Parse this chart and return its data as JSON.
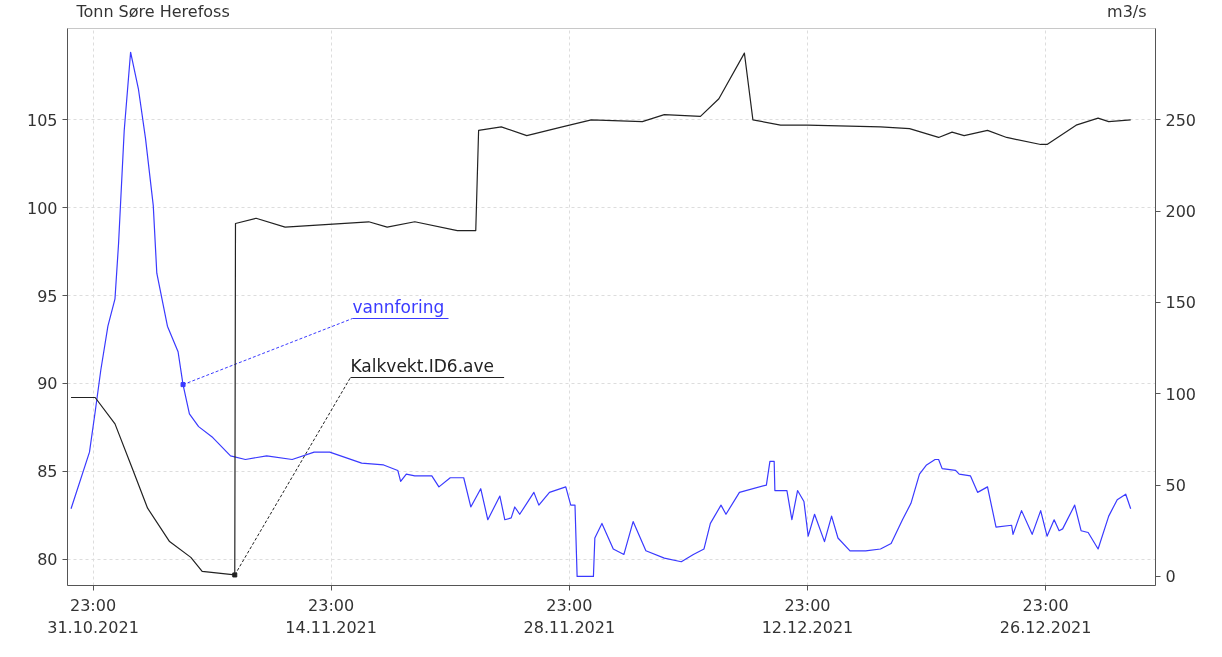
{
  "chart_data": {
    "type": "line",
    "ylabel": "Tonn Søre Herefoss",
    "y2label": "m3/s",
    "xlim": [
      "2021-10-30T11:00",
      "2022-01-02T10:00"
    ],
    "xticks": [
      {
        "value": "2021-10-31T23:00",
        "label": "23:00\n31.10.2021"
      },
      {
        "value": "2021-11-14T23:00",
        "label": "23:00\n14.11.2021"
      },
      {
        "value": "2021-11-28T23:00",
        "label": "23:00\n28.11.2021"
      },
      {
        "value": "2021-12-12T23:00",
        "label": "23:00\n12.12.2021"
      },
      {
        "value": "2021-12-26T23:00",
        "label": "23:00\n26.12.2021"
      }
    ],
    "ylim": [
      78.5,
      110.2
    ],
    "yticks": [
      80,
      85,
      90,
      95,
      100,
      105
    ],
    "y2lim": [
      -5,
      300
    ],
    "y2ticks": [
      0,
      50,
      100,
      150,
      200,
      250
    ],
    "grid": true,
    "legend": false,
    "series": [
      {
        "name": "vannforing",
        "color": "#3a3aff",
        "axis": "y2",
        "x": [
          "2021-10-30T16:00",
          "2021-10-31T18:00",
          "2021-11-01T02:00",
          "2021-11-01T10:00",
          "2021-11-01T20:00",
          "2021-11-02T06:00",
          "2021-11-02T11:00",
          "2021-11-02T19:00",
          "2021-11-03T04:00",
          "2021-11-03T15:00",
          "2021-11-04T01:00",
          "2021-11-04T12:00",
          "2021-11-04T17:00",
          "2021-11-05T08:00",
          "2021-11-05T23:00",
          "2021-11-06T06:00",
          "2021-11-06T15:00",
          "2021-11-07T04:00",
          "2021-11-08T00:00",
          "2021-11-09T01:00",
          "2021-11-09T22:00",
          "2021-11-11T04:00",
          "2021-11-12T16:00",
          "2021-11-13T23:00",
          "2021-11-14T21:00",
          "2021-11-16T18:00",
          "2021-11-18T01:00",
          "2021-11-18T21:00",
          "2021-11-19T01:00",
          "2021-11-19T09:00",
          "2021-11-19T21:00",
          "2021-11-20T21:00",
          "2021-11-21T07:00",
          "2021-11-21T23:00",
          "2021-11-22T18:00",
          "2021-11-23T04:00",
          "2021-11-23T18:00",
          "2021-11-24T04:00",
          "2021-11-24T21:00",
          "2021-11-25T04:00",
          "2021-11-25T13:00",
          "2021-11-25T18:00",
          "2021-11-26T01:00",
          "2021-11-26T21:00",
          "2021-11-27T04:00",
          "2021-11-27T19:00",
          "2021-11-28T18:00",
          "2021-11-29T01:00",
          "2021-11-29T07:00",
          "2021-11-29T10:00",
          "2021-11-30T09:00",
          "2021-11-30T11:00",
          "2021-11-30T21:00",
          "2021-12-01T13:00",
          "2021-12-02T04:00",
          "2021-12-02T17:00",
          "2021-12-03T11:00",
          "2021-12-04T13:00",
          "2021-12-05T13:00",
          "2021-12-06T06:00",
          "2021-12-06T21:00",
          "2021-12-07T06:00",
          "2021-12-07T21:00",
          "2021-12-08T04:00",
          "2021-12-08T23:00",
          "2021-12-10T13:00",
          "2021-12-10T18:00",
          "2021-12-11T00:00",
          "2021-12-11T01:00",
          "2021-12-11T18:00",
          "2021-12-12T01:00",
          "2021-12-12T09:00",
          "2021-12-12T18:00",
          "2021-12-13T00:00",
          "2021-12-13T09:00",
          "2021-12-13T23:00",
          "2021-12-14T09:00",
          "2021-12-14T18:00",
          "2021-12-15T11:00",
          "2021-12-16T09:00",
          "2021-12-17T06:00",
          "2021-12-17T21:00",
          "2021-12-18T13:00",
          "2021-12-19T01:00",
          "2021-12-19T13:00",
          "2021-12-19T23:00",
          "2021-12-20T11:00",
          "2021-12-20T16:00",
          "2021-12-20T21:00",
          "2021-12-21T16:00",
          "2021-12-21T21:00",
          "2021-12-22T13:00",
          "2021-12-22T23:00",
          "2021-12-23T13:00",
          "2021-12-24T01:00",
          "2021-12-24T23:00",
          "2021-12-25T01:00",
          "2021-12-25T13:00",
          "2021-12-26T04:00",
          "2021-12-26T16:00",
          "2021-12-27T01:00",
          "2021-12-27T11:00",
          "2021-12-27T18:00",
          "2021-12-27T23:00",
          "2021-12-28T16:00",
          "2021-12-29T01:00",
          "2021-12-29T11:00",
          "2021-12-30T01:00",
          "2021-12-30T16:00",
          "2021-12-31T04:00",
          "2021-12-31T16:00",
          "2021-12-31T23:00"
        ],
        "values": [
          37,
          68,
          90,
          113,
          137,
          152,
          182,
          244,
          287,
          267,
          240,
          203,
          166,
          137,
          123,
          105,
          89,
          82,
          76,
          66,
          64,
          66,
          64,
          68,
          68,
          62,
          61,
          58,
          52,
          56,
          55,
          55,
          49,
          54,
          54,
          38,
          48,
          31,
          44,
          31,
          32,
          38,
          34,
          46,
          39,
          46,
          49,
          39,
          39,
          0,
          0,
          21,
          29,
          15,
          12,
          30,
          14,
          10,
          8,
          12,
          15,
          29,
          39,
          34,
          46,
          50,
          63,
          63,
          47,
          47,
          31,
          47,
          41,
          22,
          34,
          19,
          33,
          21,
          14,
          14,
          15,
          18,
          31,
          40,
          56,
          61,
          64,
          64,
          59,
          58,
          56,
          55,
          46,
          49,
          27,
          28,
          23,
          36,
          23,
          36,
          22,
          31,
          25,
          26,
          39,
          25,
          24,
          15,
          33,
          42,
          45,
          37
        ]
      },
      {
        "name": "Kalkvekt.ID6.ave",
        "color": "#222222",
        "x": [
          "2021-10-30T16:00",
          "2021-11-01T02:00",
          "2021-11-02T06:00",
          "2021-11-03T07:00",
          "2021-11-04T04:00",
          "2021-11-05T11:00",
          "2021-11-06T17:00",
          "2021-11-07T09:00",
          "2021-11-09T07:00",
          "2021-11-09T08:00",
          "2021-11-10T13:00",
          "2021-11-12T06:00",
          "2021-11-17T04:00",
          "2021-11-18T06:00",
          "2021-11-19T21:00",
          "2021-11-22T09:00",
          "2021-11-23T11:00",
          "2021-11-23T15:00",
          "2021-11-24T23:00",
          "2021-11-26T11:00",
          "2021-11-28T13:00",
          "2021-11-30T06:00",
          "2021-12-03T06:00",
          "2021-12-04T13:00",
          "2021-12-06T16:00",
          "2021-12-07T18:00",
          "2021-12-09T06:00",
          "2021-12-09T18:00",
          "2021-12-11T09:00",
          "2021-12-12T23:00",
          "2021-12-17T06:00",
          "2021-12-18T23:00",
          "2021-12-20T16:00",
          "2021-12-21T11:00",
          "2021-12-22T04:00",
          "2021-12-23T13:00",
          "2021-12-24T16:00",
          "2021-12-26T16:00",
          "2021-12-27T01:00",
          "2021-12-28T18:00",
          "2021-12-30T01:00",
          "2021-12-30T16:00",
          "2021-12-31T23:00"
        ],
        "values": [
          89.2,
          89.2,
          87.7,
          85.1,
          82.9,
          81.0,
          80.1,
          79.3,
          79.1,
          99.1,
          99.4,
          98.9,
          99.2,
          98.9,
          99.2,
          98.7,
          98.7,
          104.4,
          104.6,
          104.1,
          104.6,
          105.0,
          104.9,
          105.3,
          105.2,
          106.2,
          108.8,
          105.0,
          104.7,
          104.7,
          104.6,
          104.5,
          104.0,
          104.3,
          104.1,
          104.4,
          104.0,
          103.6,
          103.6,
          104.7,
          105.1,
          104.9,
          105.0
        ]
      }
    ]
  }
}
